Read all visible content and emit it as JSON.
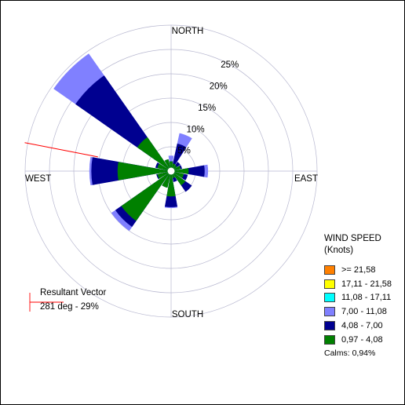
{
  "chart_data": {
    "type": "wind_rose",
    "direction_labels": [
      "NORTH",
      "EAST",
      "SOUTH",
      "WEST"
    ],
    "ring_percent_labels": [
      "5%",
      "10%",
      "15%",
      "20%",
      "25%"
    ],
    "sectors": [
      {
        "direction_deg": 0,
        "cumulative_percent": [
          2.0,
          2.0,
          3.2
        ]
      },
      {
        "direction_deg": 22.5,
        "cumulative_percent": [
          1.6,
          5.8,
          8.0
        ]
      },
      {
        "direction_deg": 45,
        "cumulative_percent": [
          1.5,
          2.3,
          2.3
        ]
      },
      {
        "direction_deg": 67.5,
        "cumulative_percent": [
          2.0,
          2.3,
          2.3
        ]
      },
      {
        "direction_deg": 90,
        "cumulative_percent": [
          3.6,
          6.9,
          7.6
        ]
      },
      {
        "direction_deg": 112.5,
        "cumulative_percent": [
          2.7,
          3.5,
          3.5
        ]
      },
      {
        "direction_deg": 135,
        "cumulative_percent": [
          3.6,
          5.2,
          5.2
        ]
      },
      {
        "direction_deg": 157.5,
        "cumulative_percent": [
          1.5,
          2.3,
          2.3
        ]
      },
      {
        "direction_deg": 180,
        "cumulative_percent": [
          5.2,
          7.4,
          7.6
        ]
      },
      {
        "direction_deg": 202.5,
        "cumulative_percent": [
          3.5,
          3.5,
          3.5
        ]
      },
      {
        "direction_deg": 225,
        "cumulative_percent": [
          12.5,
          14.0,
          15.0
        ]
      },
      {
        "direction_deg": 247.5,
        "cumulative_percent": [
          2.9,
          3.1,
          3.1
        ]
      },
      {
        "direction_deg": 270,
        "cumulative_percent": [
          11.0,
          16.4,
          16.8
        ]
      },
      {
        "direction_deg": 292.5,
        "cumulative_percent": [
          2.9,
          3.3,
          3.3
        ]
      },
      {
        "direction_deg": 315,
        "cumulative_percent": [
          8.5,
          24.0,
          29.5
        ]
      },
      {
        "direction_deg": 337.5,
        "cumulative_percent": [
          2.5,
          2.5,
          2.5
        ]
      }
    ],
    "legend": {
      "title_line1": "WIND SPEED",
      "title_line2": "(Knots)",
      "classes": [
        {
          "label": ">= 21,58",
          "color": "#ff8000"
        },
        {
          "label": "17,11 - 21,58",
          "color": "#ffff00"
        },
        {
          "label": "11,08 - 17,11",
          "color": "#00ffff"
        },
        {
          "label": "7,00 - 11,08",
          "color": "#8080ff"
        },
        {
          "label": "4,08 - 7,00",
          "color": "#000090"
        },
        {
          "label": "0,97 - 4,08",
          "color": "#008000"
        }
      ],
      "calms": "Calms: 0,94%"
    },
    "resultant_vector": {
      "label": "Resultant Vector",
      "value_text": "281 deg - 29%",
      "direction_deg": 281,
      "color": "#ff0000"
    },
    "grid": true
  }
}
